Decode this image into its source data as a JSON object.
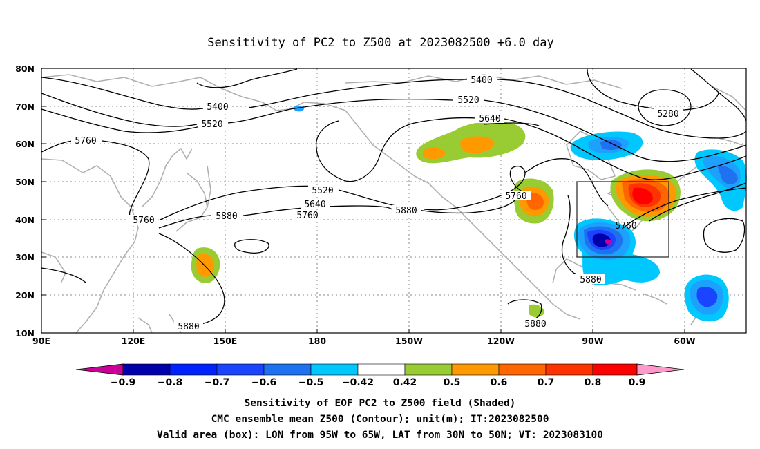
{
  "title": "Sensitivity of PC2 to Z500 at 2023082500 +6.0 day",
  "map": {
    "lat_labels": [
      "80N",
      "70N",
      "60N",
      "50N",
      "40N",
      "30N",
      "20N",
      "10N"
    ],
    "lon_labels": [
      "90E",
      "120E",
      "150E",
      "180",
      "150W",
      "120W",
      "90W",
      "60W"
    ],
    "contour_labels": [
      "5400",
      "5400",
      "5520",
      "5520",
      "5640",
      "5760",
      "5280",
      "5520",
      "5640",
      "5760",
      "5880",
      "5880",
      "5760",
      "5760",
      "5880",
      "5880",
      "5880"
    ],
    "valid_box": {
      "lon_west": "95W",
      "lon_east": "65W",
      "lat_south": "30N",
      "lat_north": "50N"
    }
  },
  "colorbar": {
    "labels": [
      "-0.9",
      "-0.8",
      "-0.7",
      "-0.6",
      "-0.5",
      "-0.42",
      "0.42",
      "0.5",
      "0.6",
      "0.7",
      "0.8",
      "0.9"
    ],
    "colors": [
      "#cc0099",
      "#0000aa",
      "#0022ff",
      "#1a44ff",
      "#1e72f0",
      "#1ea0ff",
      "#00c8ff",
      "#ffffff",
      "#99cc33",
      "#ff9900",
      "#ff6600",
      "#ff3300",
      "#ff0000",
      "#ff99cc"
    ]
  },
  "caption": {
    "line1": "Sensitivity of EOF PC2 to Z500 field (Shaded)",
    "line2": "CMC ensemble mean Z500 (Contour); unit(m); IT:2023082500",
    "line3": "Valid area (box): LON from 95W to 65W, LAT from 30N to 50N; VT: 2023083100"
  }
}
